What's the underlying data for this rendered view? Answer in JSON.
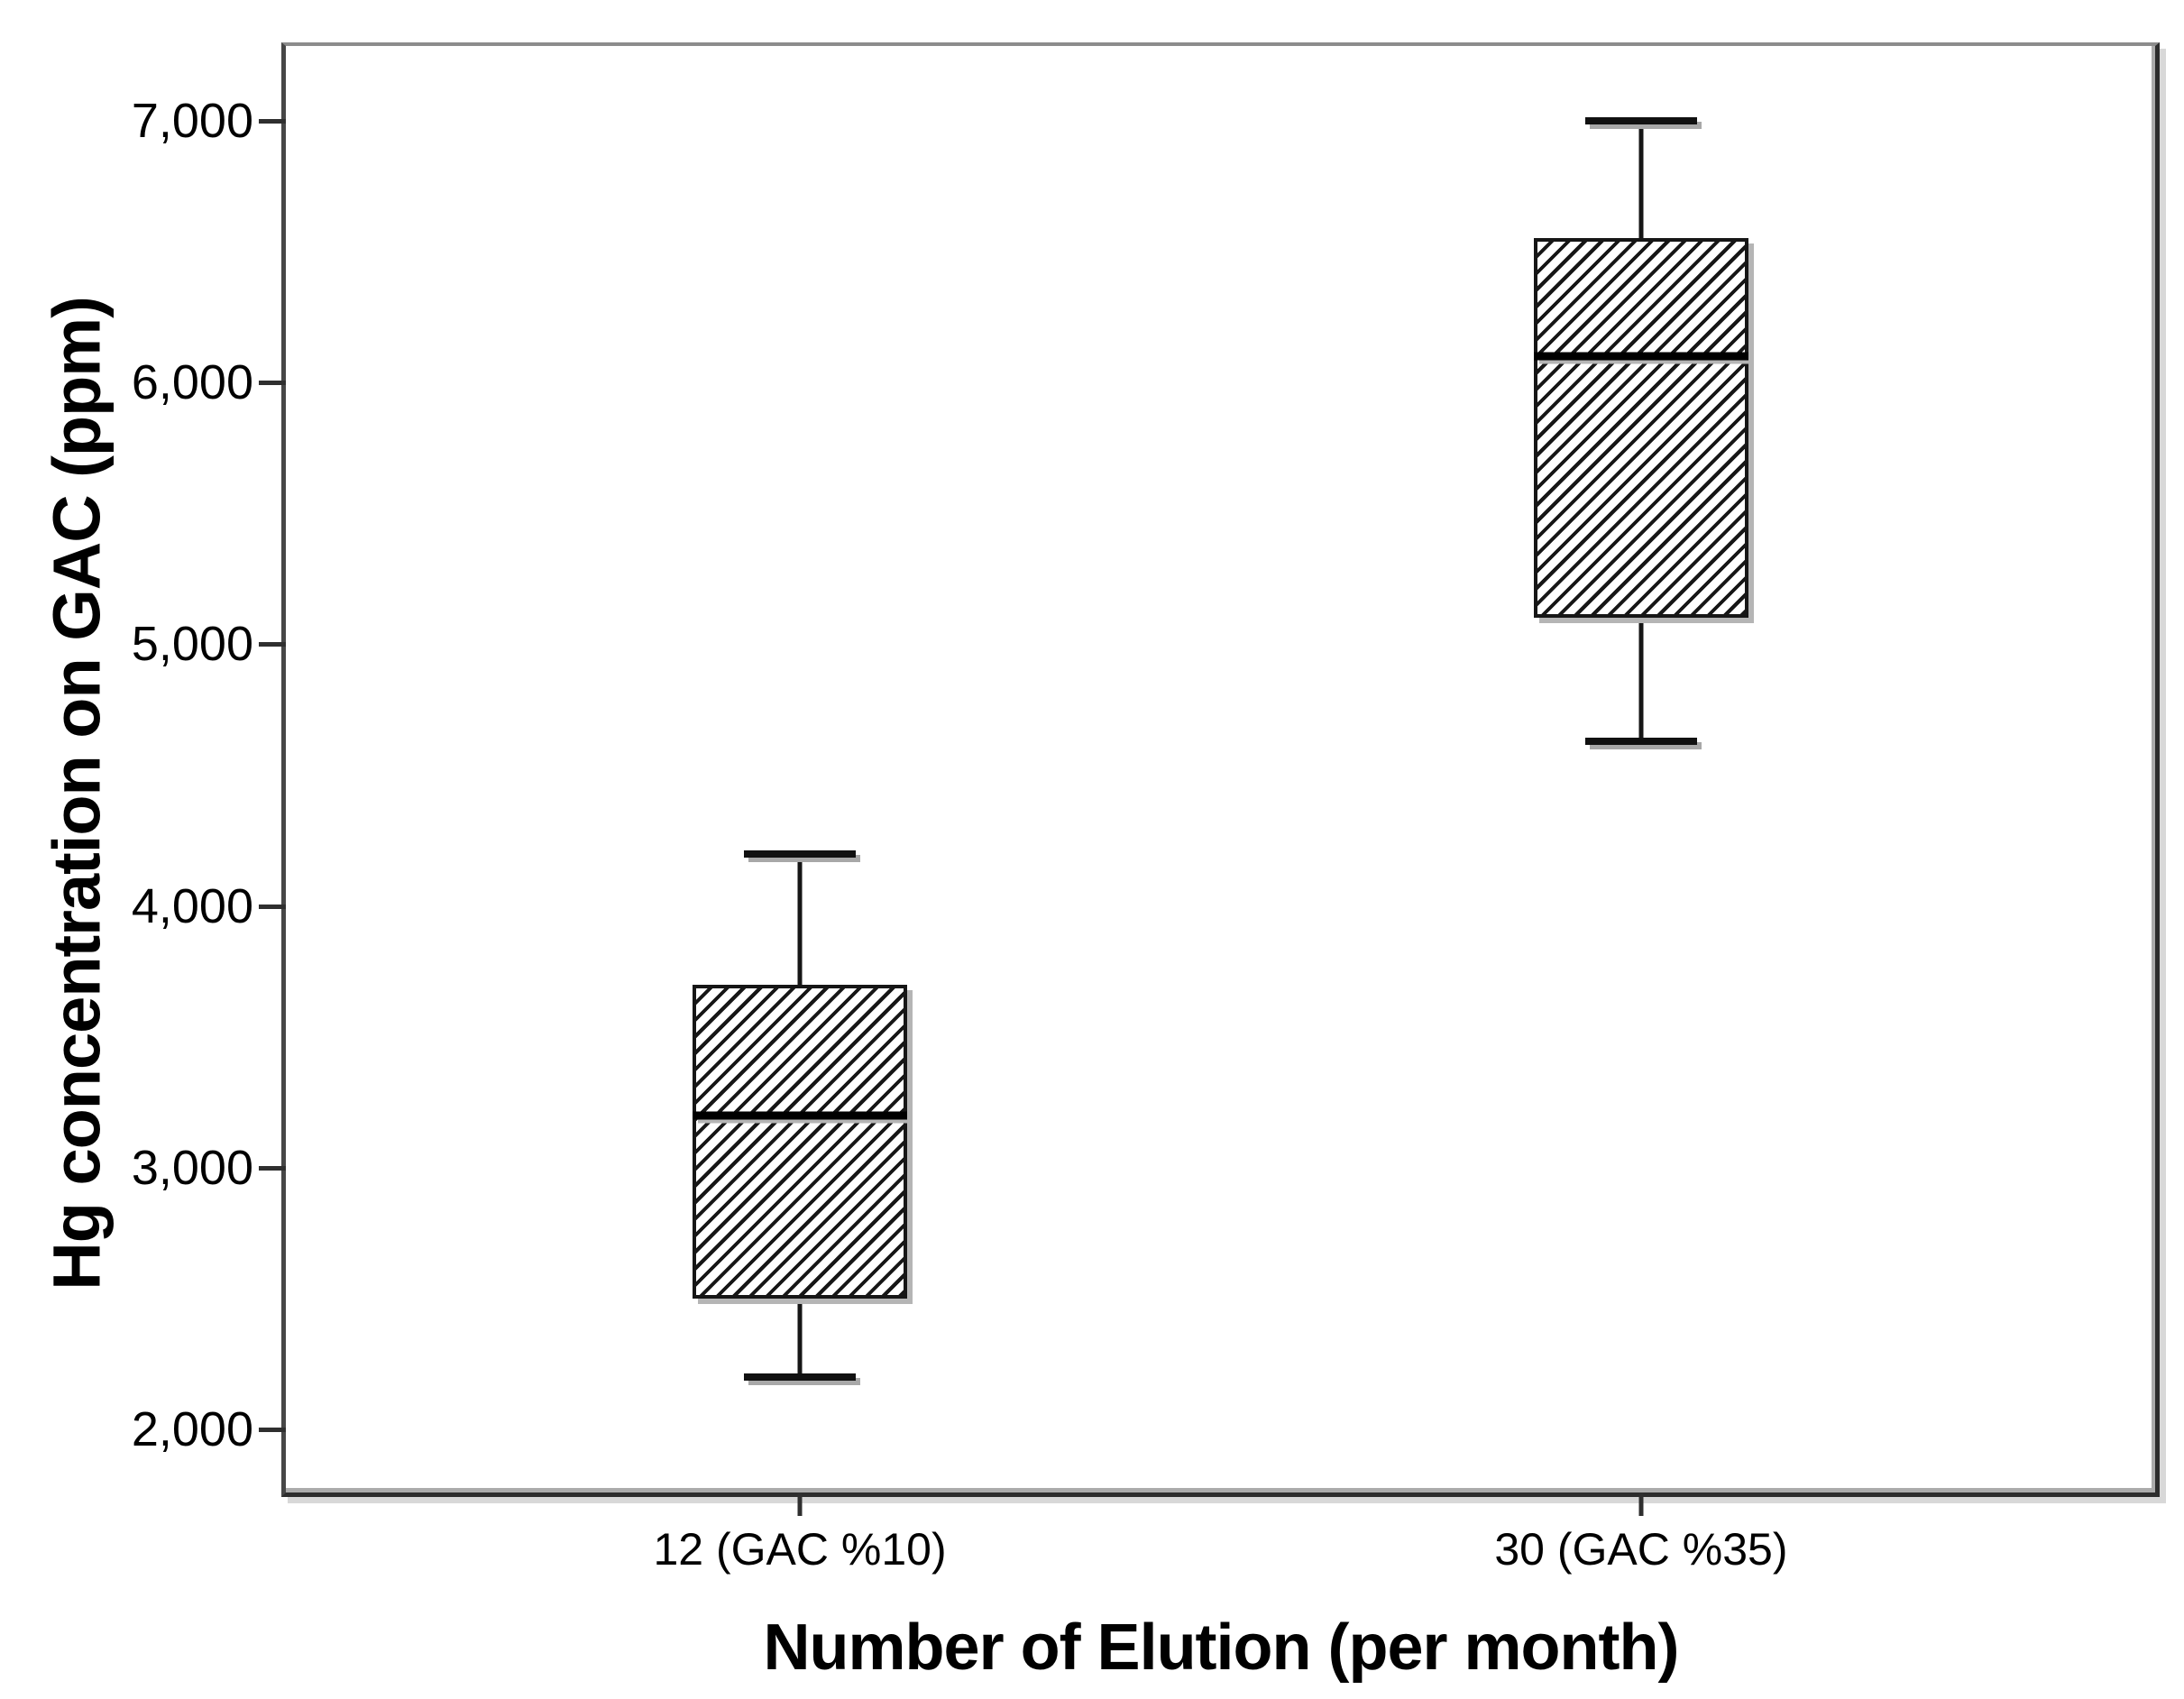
{
  "chart_data": {
    "type": "boxplot",
    "title": "",
    "xlabel": "Number of Elution (per month)",
    "ylabel": "Hg concentration on GAC (ppm)",
    "ylim": [
      1760,
      7285
    ],
    "yticks": [
      2000,
      3000,
      4000,
      5000,
      6000,
      7000
    ],
    "ytick_labels": [
      "2,000",
      "3,000",
      "4,000",
      "5,000",
      "6,000",
      "7,000"
    ],
    "grid": false,
    "legend": "none",
    "fill_pattern": "diagonal-hatch",
    "categories": [
      "12 (GAC %10)",
      "30 (GAC %35)"
    ],
    "series": [
      {
        "category": "12 (GAC %10)",
        "x_pct": 27.5,
        "whisker_low": 2200,
        "q1": 2500,
        "median": 3200,
        "q3": 3700,
        "whisker_high": 4200
      },
      {
        "category": "30 (GAC %35)",
        "x_pct": 72.5,
        "whisker_low": 4630,
        "q1": 5100,
        "median": 6100,
        "q3": 6550,
        "whisker_high": 7000
      }
    ]
  }
}
